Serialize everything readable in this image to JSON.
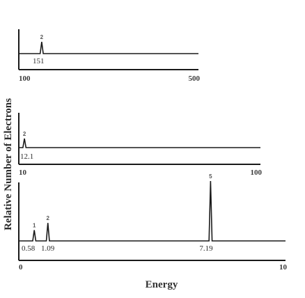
{
  "chart_data": {
    "type": "line",
    "ylabel": "Relative Number of Electrons",
    "xlabel": "Energy",
    "panels": [
      {
        "xlim": [
          100,
          500
        ],
        "tick_labels": [
          "100",
          "500"
        ],
        "peaks": [
          {
            "x": 151,
            "height": 0.65,
            "label": "2",
            "value_label": "151"
          }
        ]
      },
      {
        "xlim": [
          10,
          100
        ],
        "tick_labels": [
          "10",
          "100"
        ],
        "peaks": [
          {
            "x": 12.1,
            "height": 0.5,
            "label": "2",
            "value_label": "12.1"
          }
        ]
      },
      {
        "xlim": [
          0,
          10
        ],
        "tick_labels": [
          "0",
          "10"
        ],
        "peaks": [
          {
            "x": 0.58,
            "height": 0.18,
            "label": "1",
            "value_label": "0.58"
          },
          {
            "x": 1.09,
            "height": 0.3,
            "label": "2",
            "value_label": "1.09"
          },
          {
            "x": 7.19,
            "height": 1.0,
            "label": "5",
            "value_label": "7.19"
          }
        ]
      }
    ]
  }
}
